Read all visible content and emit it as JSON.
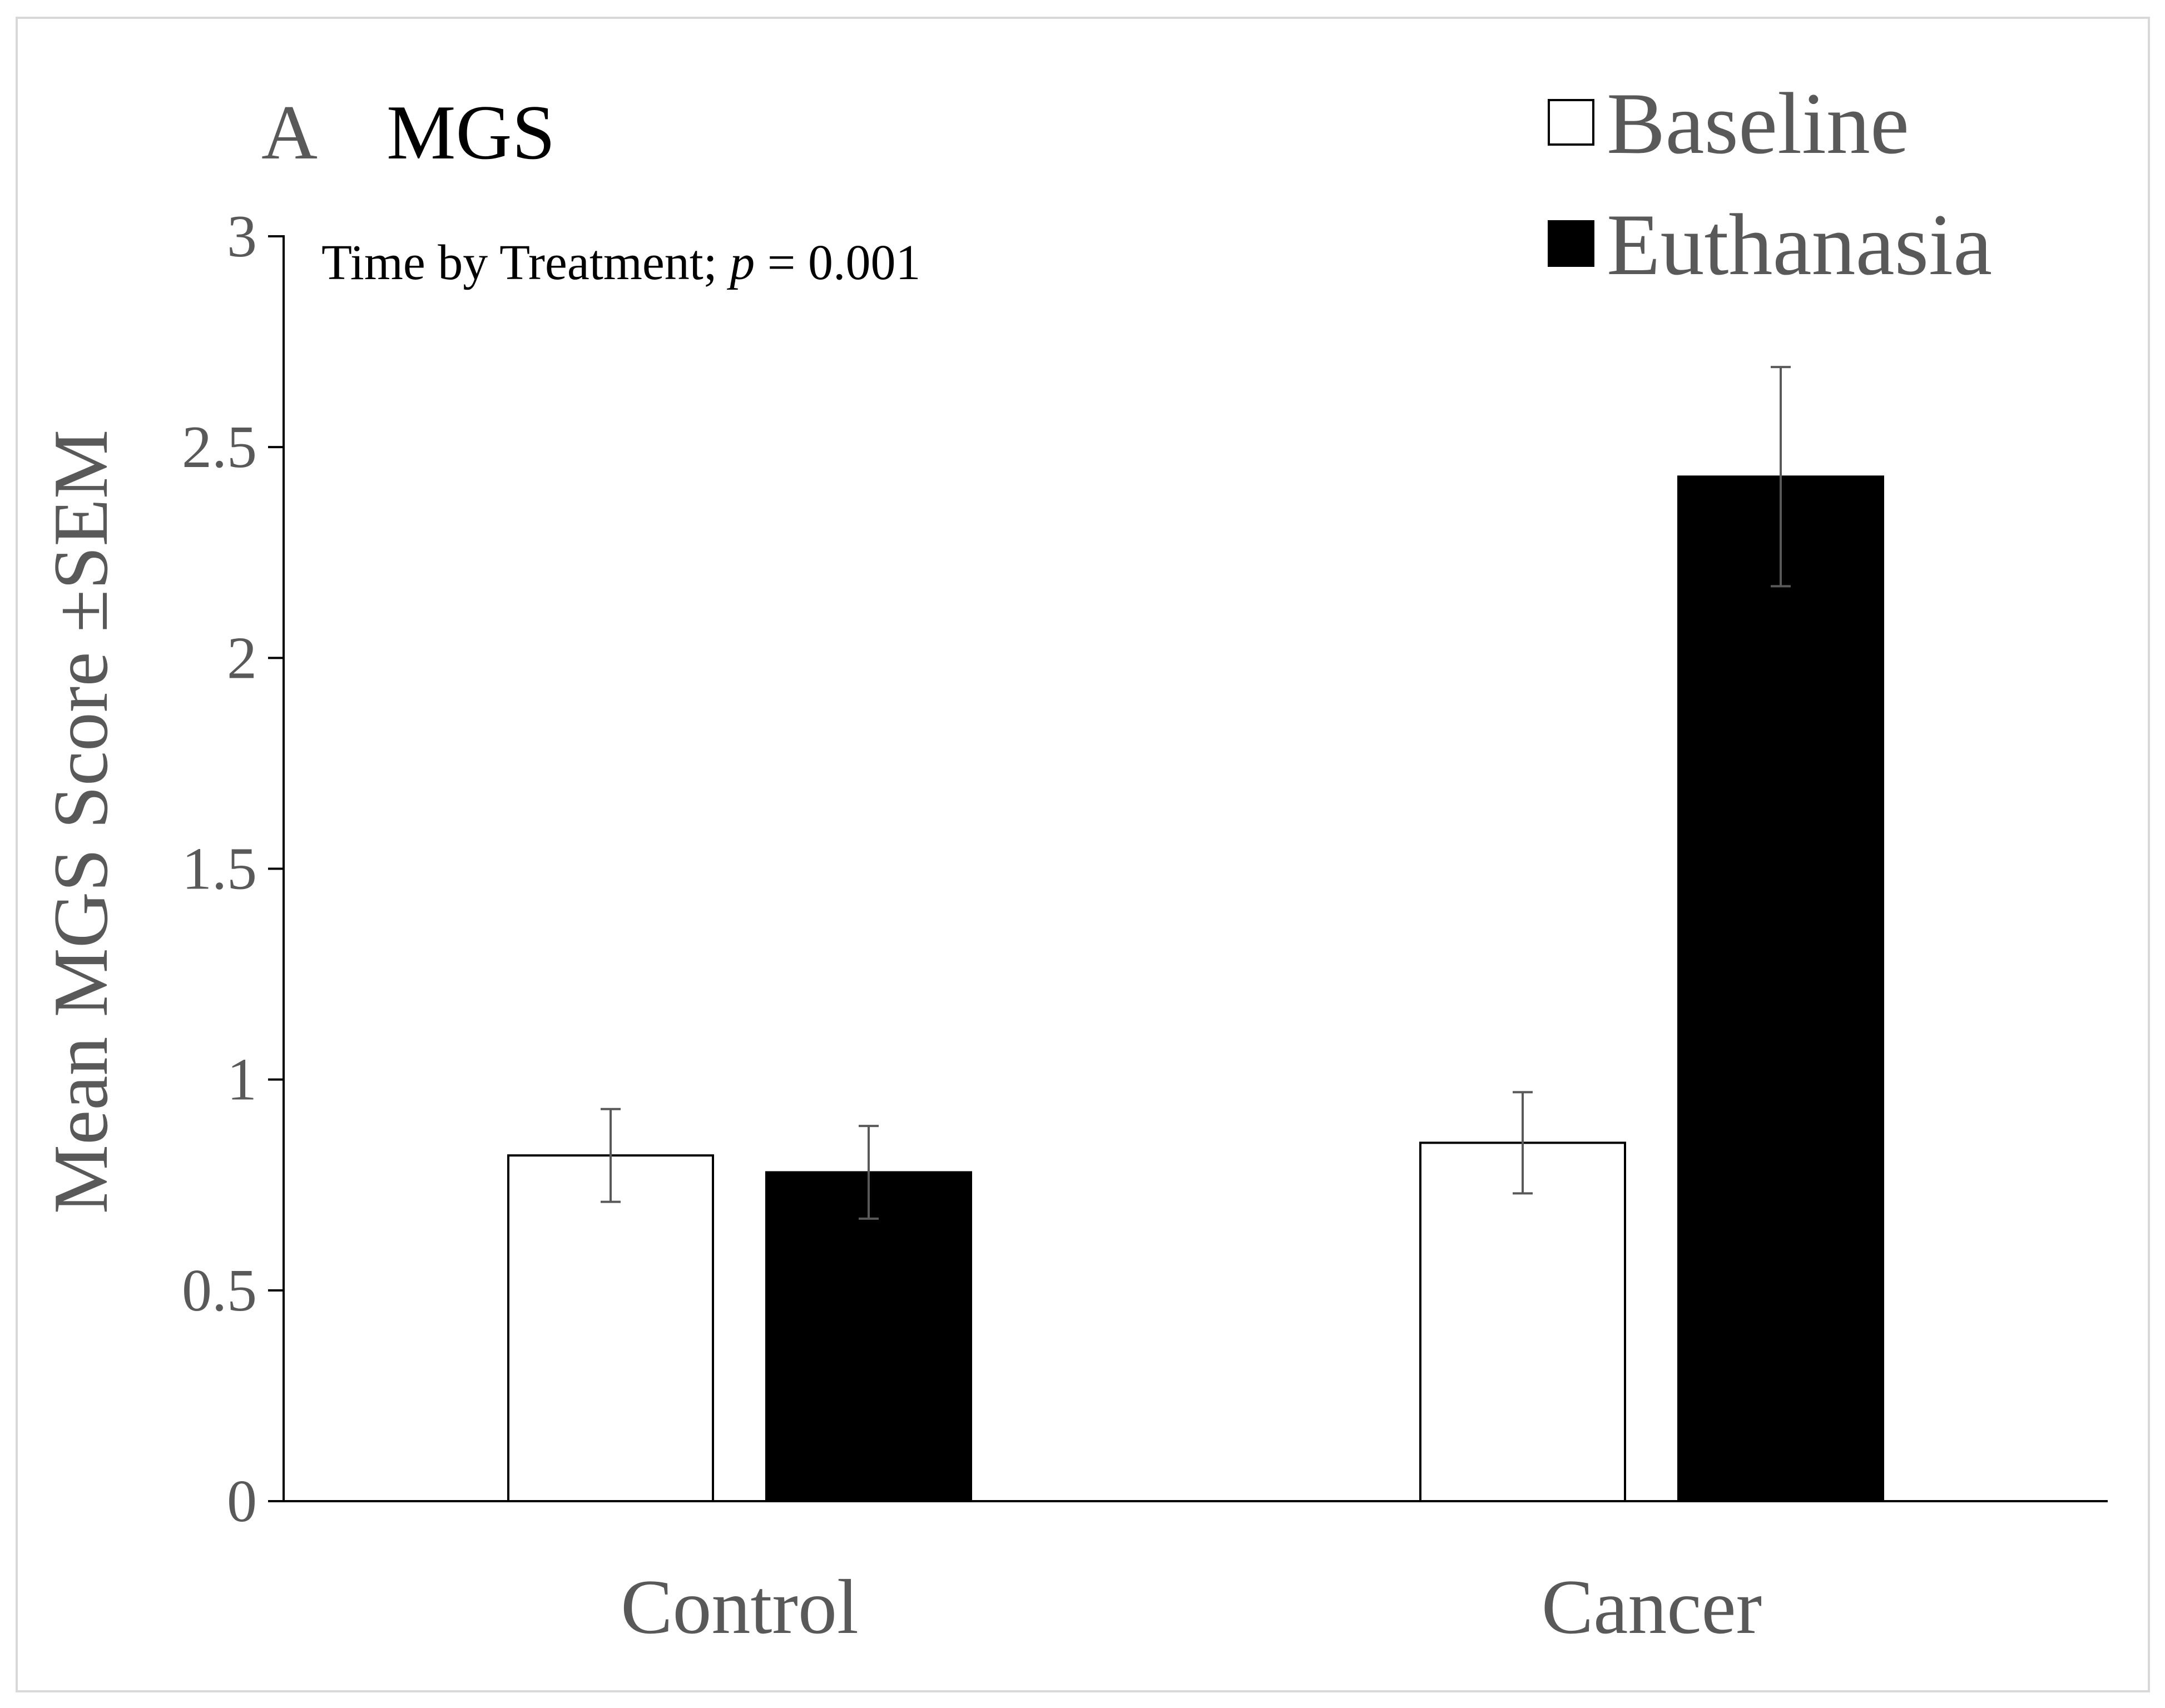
{
  "colors": {
    "baseline_fill": "#ffffff",
    "euthanasia_fill": "#000000",
    "bar_stroke": "#000000",
    "axis": "#000000",
    "error_bar": "#595959",
    "text_gray": "#595959",
    "frame": "#d9d9d9"
  },
  "chart_data": {
    "type": "bar",
    "panel_letter": "A",
    "title": "MGS",
    "annotation": {
      "prefix": "Time by Treatment; ",
      "p_symbol": "p",
      "suffix": " = 0.001"
    },
    "xlabel": "",
    "ylabel": "Mean MGS Score ±SEM",
    "ylim": [
      0,
      3
    ],
    "yticks": [
      {
        "value": 0,
        "label": "0"
      },
      {
        "value": 0.5,
        "label": "0.5"
      },
      {
        "value": 1,
        "label": "1"
      },
      {
        "value": 1.5,
        "label": "1.5"
      },
      {
        "value": 2,
        "label": "2"
      },
      {
        "value": 2.5,
        "label": "2.5"
      },
      {
        "value": 3,
        "label": "3"
      }
    ],
    "grid": false,
    "legend_position": "top-right",
    "categories": [
      "Control",
      "Cancer"
    ],
    "series": [
      {
        "name": "Baseline",
        "values": [
          0.82,
          0.85
        ],
        "sem": [
          0.11,
          0.12
        ],
        "fill": "#ffffff"
      },
      {
        "name": "Euthanasia",
        "values": [
          0.78,
          2.43
        ],
        "sem": [
          0.11,
          0.26
        ],
        "fill": "#000000"
      }
    ]
  }
}
